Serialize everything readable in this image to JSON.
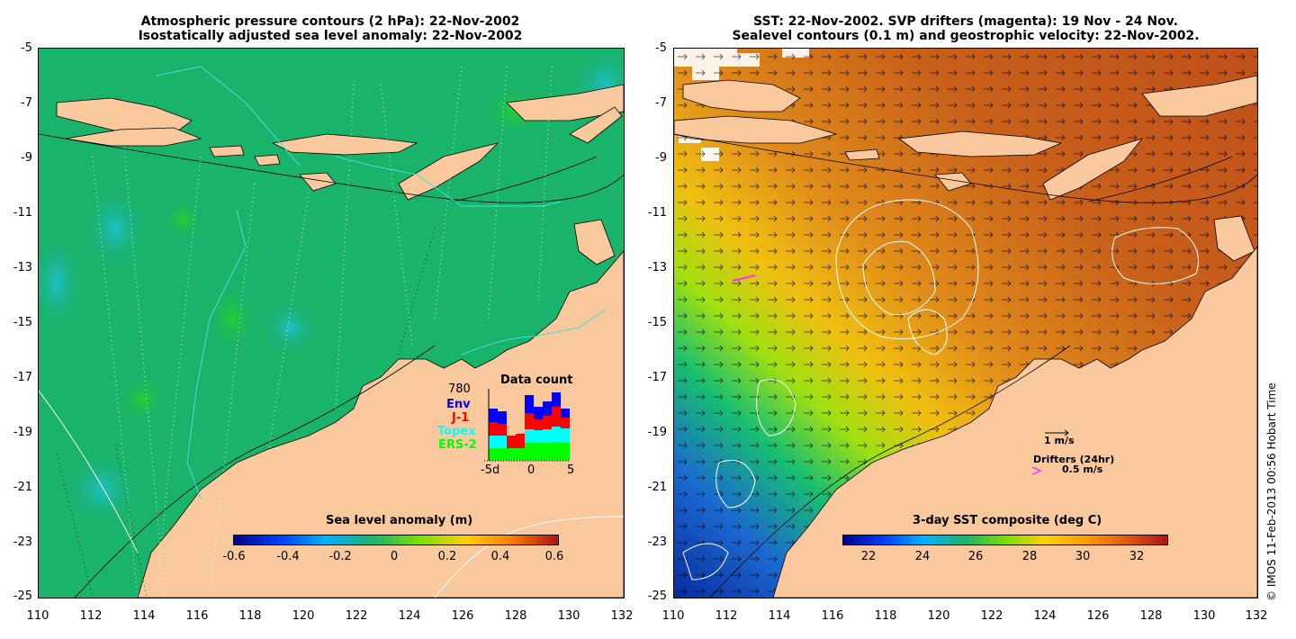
{
  "left_panel": {
    "title_line1": "Atmospheric pressure contours (2 hPa): 22-Nov-2002",
    "title_line2": "Isostatically adjusted sea level anomaly: 22-Nov-2002",
    "colorbar_title": "Sea level anomaly (m)",
    "colorbar_ticks": [
      "-0.6",
      "-0.4",
      "-0.2",
      "0",
      "0.2",
      "0.4",
      "0.6"
    ],
    "inset": {
      "title": "Data count",
      "max_label": "780",
      "legend": [
        {
          "label": "Env",
          "color": "#0000ff"
        },
        {
          "label": "J-1",
          "color": "#ff0000"
        },
        {
          "label": "Topex",
          "color": "#00ffff"
        },
        {
          "label": "ERS-2",
          "color": "#00ff00"
        }
      ],
      "x_ticks": [
        "-5d",
        "0",
        "5"
      ]
    }
  },
  "right_panel": {
    "title_line1": "SST: 22-Nov-2002. SVP drifters (magenta): 19 Nov - 24 Nov.",
    "title_line2": "Sealevel contours (0.1 m) and geostrophic velocity: 22-Nov-2002.",
    "colorbar_title": "3-day SST composite (deg C)",
    "colorbar_ticks": [
      "22",
      "24",
      "26",
      "28",
      "30",
      "32"
    ],
    "velocity_legend": "1 m/s",
    "drifters_legend_title": "Drifters (24hr)",
    "drifters_legend_speed": "0.5 m/s",
    "drifter_color": "#ff33ff"
  },
  "y_axis_ticks": [
    "-5",
    "-7",
    "-9",
    "-11",
    "-13",
    "-15",
    "-17",
    "-19",
    "-21",
    "-23",
    "-25"
  ],
  "x_axis_ticks": [
    "110",
    "112",
    "114",
    "116",
    "118",
    "120",
    "122",
    "124",
    "126",
    "128",
    "130",
    "132"
  ],
  "credit": "© IMOS 11-Feb-2013 00:56 Hobart Time",
  "colors": {
    "land": "#f9c89c",
    "ocean_green": "#19b36a",
    "sst_warm": "#d2641e"
  }
}
